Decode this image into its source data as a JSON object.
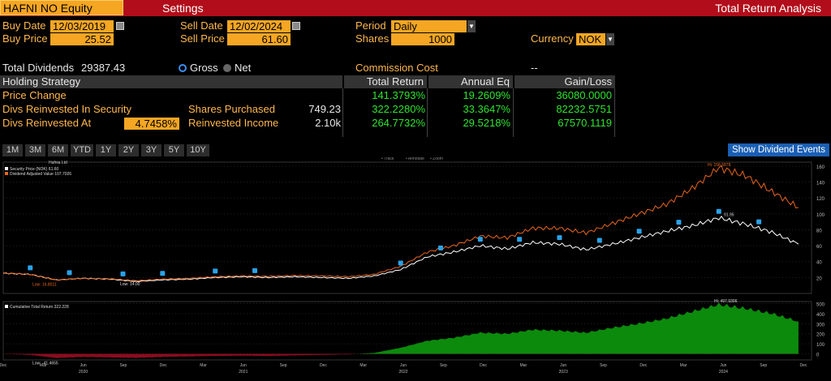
{
  "header": {
    "security": "HAFNI NO Equity",
    "settings": "Settings",
    "title": "Total Return Analysis"
  },
  "form": {
    "buy_date_label": "Buy Date",
    "buy_date": "12/03/2019",
    "buy_price_label": "Buy Price",
    "buy_price": "25.52",
    "sell_date_label": "Sell Date",
    "sell_date": "12/02/2024",
    "sell_price_label": "Sell Price",
    "sell_price": "61.60",
    "period_label": "Period",
    "period": "Daily",
    "shares_label": "Shares",
    "shares": "1000",
    "currency_label": "Currency",
    "currency": "NOK",
    "total_dividends_label": "Total Dividends",
    "total_dividends": "29387.43",
    "gross_label": "Gross",
    "net_label": "Net",
    "commission_label": "Commission Cost",
    "commission_value": "--"
  },
  "table": {
    "headers": [
      "Holding Strategy",
      "Total Return",
      "Annual Eq",
      "Gain/Loss"
    ],
    "rows": [
      {
        "label": "Price Change",
        "total_return": "141.3793%",
        "annual_eq": "19.2609%",
        "gain_loss": "36080.0000"
      },
      {
        "label": "Divs Reinvested In Security",
        "mid_label": "Shares Purchased",
        "mid_value": "749.23",
        "total_return": "322.2280%",
        "annual_eq": "33.3647%",
        "gain_loss": "82232.5751"
      },
      {
        "label": "Divs Reinvested At",
        "input": "4.7458%",
        "mid_label": "Reinvested Income",
        "mid_value": "2.10k",
        "total_return": "264.7732%",
        "annual_eq": "29.5218%",
        "gain_loss": "67570.1119"
      }
    ]
  },
  "periods": [
    "1M",
    "3M",
    "6M",
    "YTD",
    "1Y",
    "2Y",
    "3Y",
    "5Y",
    "10Y"
  ],
  "show_dividends": "Show Dividend Events",
  "chart_controls": [
    "Track",
    "Annotate",
    "Zoom"
  ],
  "chart_data": [
    {
      "type": "line",
      "title": "Hafnia Ltd",
      "series": [
        {
          "name": "Security Price (NOK)",
          "legend_value": "61.60",
          "color": "#ffffff",
          "dates": [
            "2019-12",
            "2020-02",
            "2020-04",
            "2020-06",
            "2020-08",
            "2020-10",
            "2020-12",
            "2021-02",
            "2021-04",
            "2021-06",
            "2021-08",
            "2021-10",
            "2021-12",
            "2022-02",
            "2022-04",
            "2022-06",
            "2022-08",
            "2022-10",
            "2022-12",
            "2023-02",
            "2023-04",
            "2023-06",
            "2023-08",
            "2023-10",
            "2023-12",
            "2024-02",
            "2024-04",
            "2024-06",
            "2024-08",
            "2024-10",
            "2024-12"
          ],
          "values": [
            25.5,
            24,
            17,
            19,
            18,
            15,
            17,
            18,
            20,
            21,
            20,
            21,
            20,
            19,
            22,
            30,
            46,
            52,
            60,
            56,
            64,
            62,
            55,
            62,
            70,
            78,
            85,
            95,
            87,
            77,
            62
          ]
        },
        {
          "name": "Dividend Adjusted Value",
          "legend_value": "107.7026",
          "color": "#e8661c",
          "dates": [
            "2019-12",
            "2020-02",
            "2020-04",
            "2020-06",
            "2020-08",
            "2020-10",
            "2020-12",
            "2021-02",
            "2021-04",
            "2021-06",
            "2021-08",
            "2021-10",
            "2021-12",
            "2022-02",
            "2022-04",
            "2022-06",
            "2022-08",
            "2022-10",
            "2022-12",
            "2023-02",
            "2023-04",
            "2023-06",
            "2023-08",
            "2023-10",
            "2023-12",
            "2024-02",
            "2024-04",
            "2024-06",
            "2024-08",
            "2024-10",
            "2024-12"
          ],
          "values": [
            25.5,
            24,
            16.8,
            19,
            18.5,
            16,
            18,
            19,
            21,
            22,
            21.5,
            22.5,
            22,
            21,
            24,
            34,
            52,
            60,
            72,
            70,
            82,
            82,
            76,
            88,
            100,
            112,
            132,
            158,
            148,
            128,
            108
          ]
        }
      ],
      "annotations": [
        "Low: 16.8011",
        "Low: 14.00",
        "Hi: 158.5878",
        "91.95"
      ],
      "yticks": [
        20,
        40,
        60,
        80,
        100,
        120,
        140,
        160
      ],
      "ylim": [
        0,
        165
      ]
    },
    {
      "type": "area",
      "series": [
        {
          "name": "Cumulative Total Return",
          "legend_value": "322.228",
          "color": "#0c8a0c",
          "dates": [
            "2019-12",
            "2020-02",
            "2020-04",
            "2020-06",
            "2020-08",
            "2020-10",
            "2020-12",
            "2021-02",
            "2021-04",
            "2021-06",
            "2021-08",
            "2021-10",
            "2021-12",
            "2022-02",
            "2022-04",
            "2022-06",
            "2022-08",
            "2022-10",
            "2022-12",
            "2023-02",
            "2023-04",
            "2023-06",
            "2023-08",
            "2023-10",
            "2023-12",
            "2024-02",
            "2024-04",
            "2024-06",
            "2024-08",
            "2024-10",
            "2024-12"
          ],
          "values": [
            0,
            -10,
            -41,
            -30,
            -35,
            -40,
            -30,
            -25,
            -20,
            -18,
            -20,
            -15,
            -10,
            -5,
            10,
            60,
            130,
            160,
            210,
            200,
            240,
            230,
            210,
            260,
            300,
            350,
            420,
            490,
            450,
            400,
            322
          ]
        }
      ],
      "annotations": [
        "Hi: 497.9306",
        "Low: -41.4655"
      ],
      "yticks": [
        0,
        100,
        200,
        300,
        400,
        500
      ],
      "ylim": [
        -60,
        520
      ]
    }
  ],
  "x_axis": {
    "months": [
      "Dec",
      "Mar",
      "Jun",
      "Sep",
      "Dec",
      "Mar",
      "Jun",
      "Sep",
      "Dec",
      "Mar",
      "Jun",
      "Sep",
      "Dec",
      "Mar",
      "Jun",
      "Sep",
      "Dec",
      "Mar",
      "Jun",
      "Sep",
      "Dec"
    ],
    "years": [
      "2020",
      "2021",
      "2022",
      "2023",
      "2024"
    ]
  }
}
